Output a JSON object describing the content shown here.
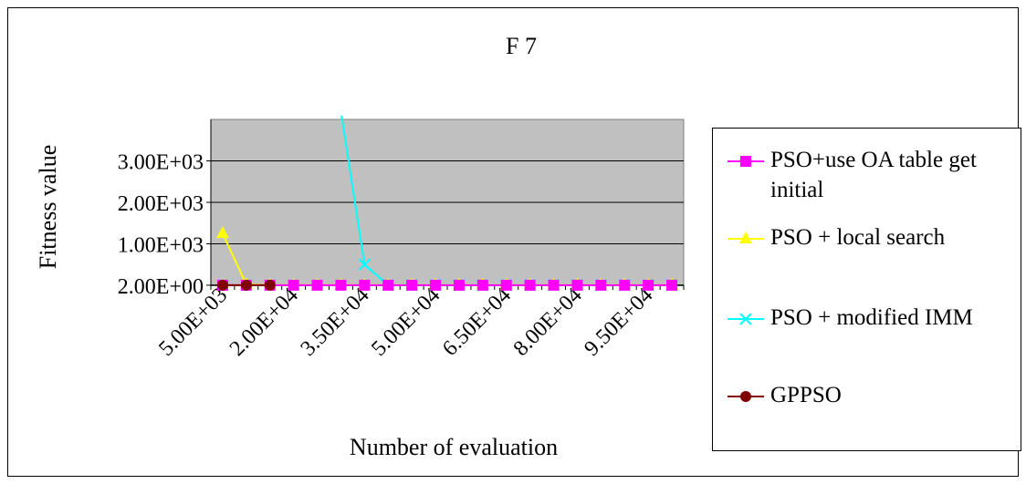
{
  "chart_data": {
    "type": "line",
    "title": "F 7",
    "xlabel": "Number of evaluation",
    "ylabel": "Fitness value",
    "x": [
      5000,
      10000,
      15000,
      20000,
      25000,
      30000,
      35000,
      40000,
      45000,
      50000,
      55000,
      60000,
      65000,
      70000,
      75000,
      80000,
      85000,
      90000,
      95000,
      100000
    ],
    "x_tick_labels": [
      "5.00E+03",
      "2.00E+04",
      "3.50E+04",
      "5.00E+04",
      "6.50E+04",
      "8.00E+04",
      "9.50E+04"
    ],
    "x_tick_values": [
      5000,
      20000,
      35000,
      50000,
      65000,
      80000,
      95000
    ],
    "y_tick_labels": [
      "2.00E+00",
      "1.00E+03",
      "2.00E+03",
      "3.00E+03"
    ],
    "y_tick_values": [
      2,
      1000,
      2000,
      3000
    ],
    "ylim": [
      0,
      4000
    ],
    "grid": true,
    "legend_position": "right",
    "plot_background": "#c0c0c0",
    "series": [
      {
        "name": "PSO+use OA table get initial",
        "color": "#ff00ff",
        "marker": "square",
        "values": [
          2,
          2,
          2,
          2,
          2,
          2,
          2,
          2,
          2,
          2,
          2,
          2,
          2,
          2,
          2,
          2,
          2,
          2,
          2,
          2
        ]
      },
      {
        "name": "PSO + local search",
        "color": "#ffff00",
        "marker": "triangle",
        "values": [
          1250,
          20,
          5,
          5,
          5,
          5,
          5,
          5,
          5,
          5,
          5,
          5,
          5,
          5,
          5,
          5,
          5,
          5,
          5,
          5
        ]
      },
      {
        "name": "PSO + modified IMM",
        "color": "#00ffff",
        "marker": "x",
        "values": [
          null,
          null,
          null,
          null,
          null,
          4200,
          500,
          5,
          5,
          5,
          5,
          5,
          5,
          5,
          5,
          5,
          5,
          5,
          5,
          5
        ]
      },
      {
        "name": "GPPSO",
        "color": "#800000",
        "marker": "circle",
        "values": [
          2,
          2,
          2,
          null,
          null,
          null,
          null,
          null,
          null,
          null,
          null,
          null,
          null,
          null,
          null,
          null,
          null,
          null,
          null,
          null
        ]
      }
    ]
  }
}
